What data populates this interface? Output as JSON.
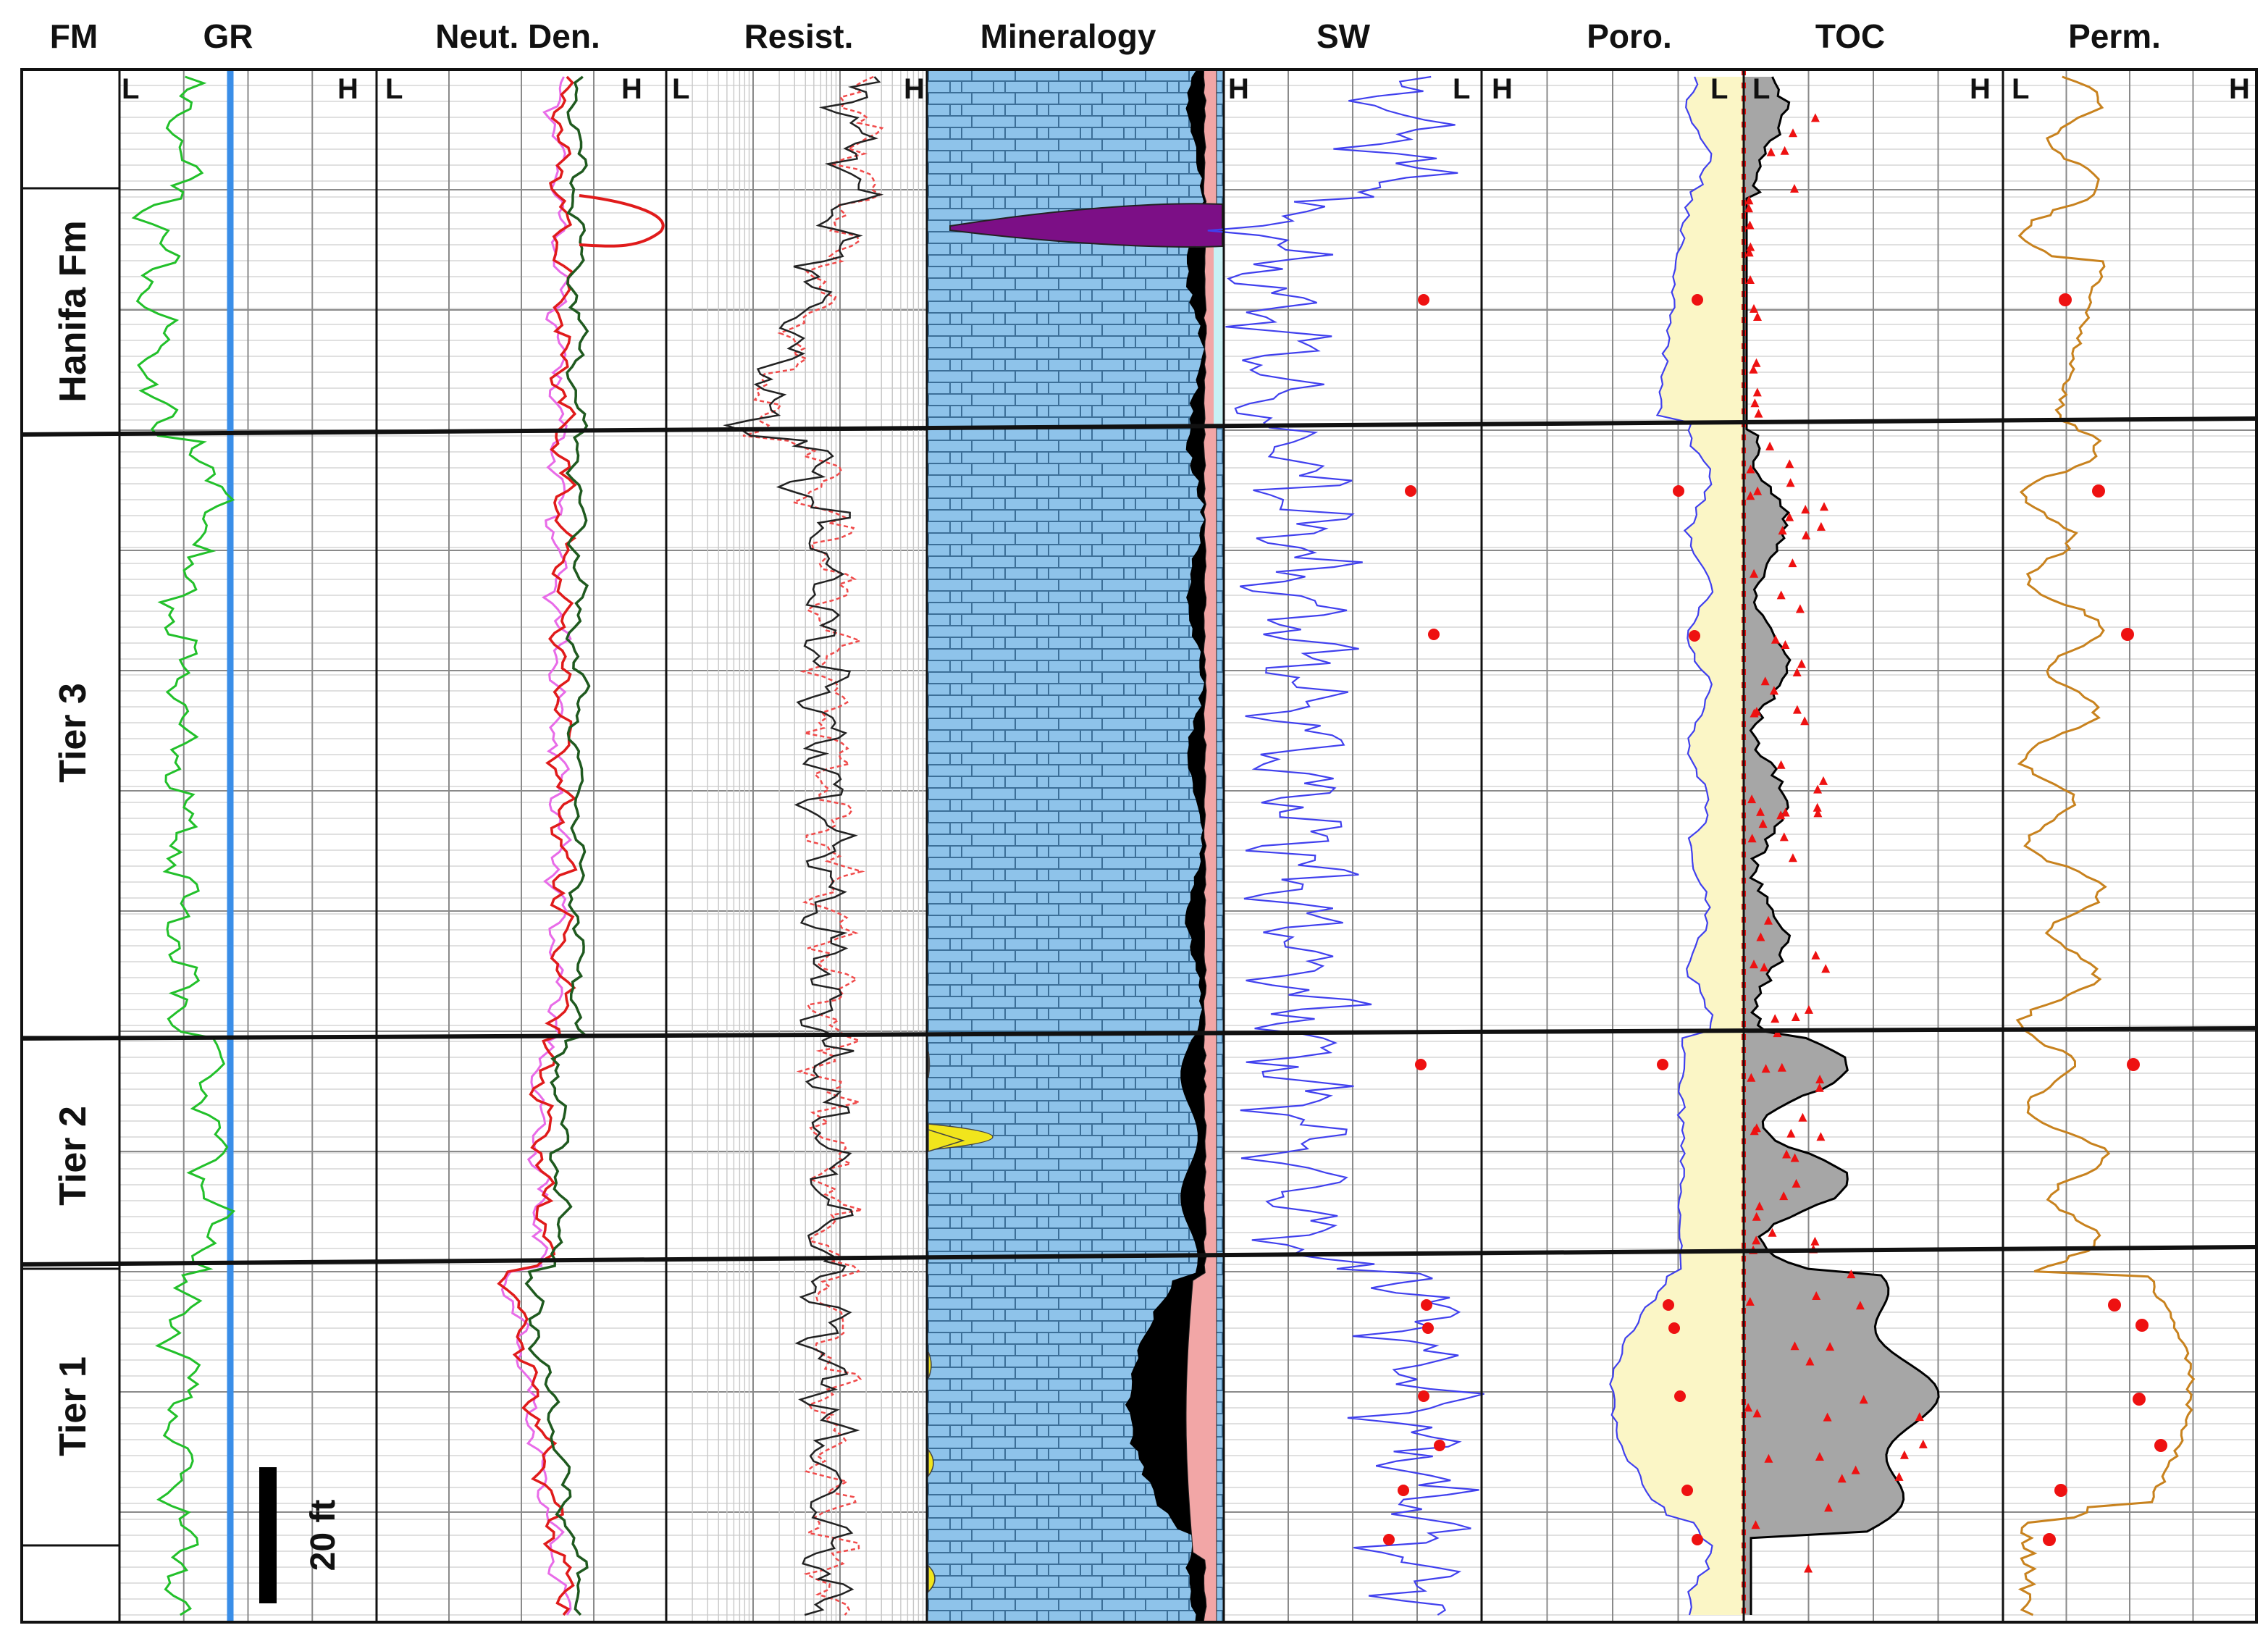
{
  "chart_data": {
    "type": "well-log",
    "headers": [
      "FM",
      "GR",
      "Neut. Den.",
      "Resist.",
      "Mineralogy",
      "SW",
      "Poro.",
      "TOC",
      "Perm."
    ],
    "scale_labels": {
      "GR": [
        "L",
        "H"
      ],
      "Neut. Den.": [
        "L",
        "H"
      ],
      "Resist.": [
        "L",
        "H"
      ],
      "SW": [
        "H",
        "L"
      ],
      "Poro.": [
        "H",
        "L"
      ],
      "TOC": [
        "L",
        "H"
      ],
      "Perm.": [
        "L",
        "H"
      ]
    },
    "formations": [
      {
        "label": "Hanifa Fm"
      },
      {
        "label": "Tier 3"
      },
      {
        "label": "Tier 2"
      },
      {
        "label": "Tier 1"
      }
    ],
    "scale_bar_label": "20 ft",
    "colors": {
      "gr": "#22c02a",
      "gr_baseline": "#3a8ee8",
      "neutron": "#e01b1b",
      "density": "#1f5a1f",
      "pink_curve": "#e86be8",
      "resist_deep": "#222222",
      "resist_shallow": "#f04a4a",
      "limestone": "#8ec3ea",
      "organic_matter": "#000000",
      "clay": "#f2a6a6",
      "anhydrite": "#7c0f86",
      "dolomite": "#f1e51c",
      "sw_curve": "#4040ee",
      "porosity_fill": "#fbf6c6",
      "toc_fill": "#a6a6a6",
      "core_points": "#ee1111",
      "perm_curve": "#c8821e"
    }
  }
}
